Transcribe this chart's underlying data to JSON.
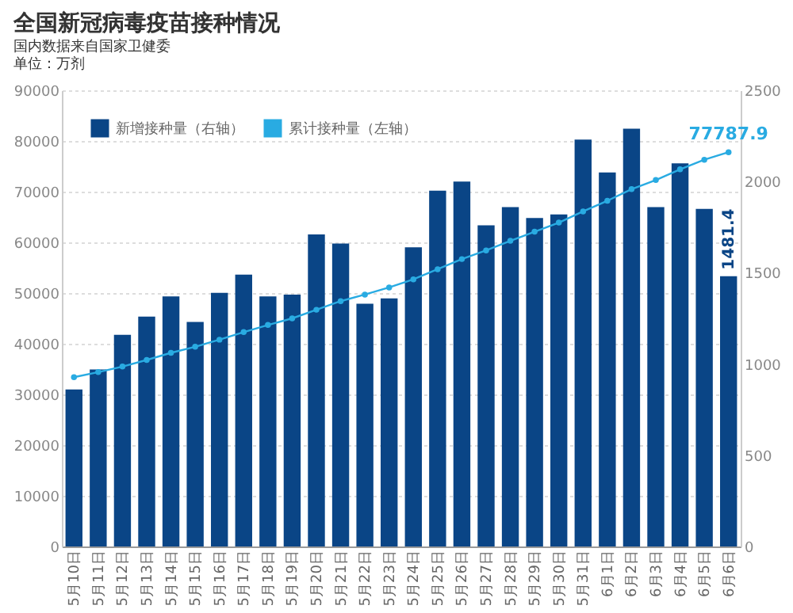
{
  "chart_data": {
    "type": "bar",
    "title": "全国新冠病毒疫苗接种情况",
    "subtitle": "国内数据来自国家卫健委",
    "annotations": [
      "单位：万剂"
    ],
    "categories": [
      "5月10日",
      "5月11日",
      "5月12日",
      "5月13日",
      "5月14日",
      "5月15日",
      "5月16日",
      "5月17日",
      "5月18日",
      "5月19日",
      "5月20日",
      "5月21日",
      "5月22日",
      "5月23日",
      "5月24日",
      "5月25日",
      "5月26日",
      "5月27日",
      "5月28日",
      "5月29日",
      "5月30日",
      "5月31日",
      "6月1日",
      "6月2日",
      "6月3日",
      "6月4日",
      "6月5日",
      "6月6日"
    ],
    "series": [
      {
        "name": "新增接种量（右轴）",
        "axis": "y2",
        "color": "#0a4586",
        "values": [
          860,
          970,
          1160,
          1260,
          1370,
          1230,
          1390,
          1490,
          1370,
          1380,
          1710,
          1660,
          1330,
          1360,
          1640,
          1950,
          2000,
          1760,
          1860,
          1800,
          1820,
          2230,
          2050,
          2290,
          1860,
          2100,
          1850,
          1481.4
        ],
        "value_labels": [
          null,
          null,
          null,
          null,
          null,
          null,
          null,
          null,
          null,
          null,
          null,
          null,
          null,
          null,
          null,
          null,
          null,
          null,
          null,
          null,
          null,
          null,
          null,
          null,
          null,
          null,
          null,
          "1481.4"
        ]
      },
      {
        "name": "累计接种量（左轴）",
        "type": "line",
        "axis": "y",
        "color": "#29abe2",
        "marker": "circle",
        "values": [
          33400,
          34400,
          35500,
          36800,
          38200,
          39400,
          40800,
          42300,
          43700,
          45000,
          46700,
          48400,
          49700,
          51100,
          52700,
          54700,
          56700,
          58400,
          60300,
          62100,
          63900,
          66100,
          68200,
          70500,
          72300,
          74400,
          76300,
          77787.9
        ],
        "value_labels": [
          null,
          null,
          null,
          null,
          null,
          null,
          null,
          null,
          null,
          null,
          null,
          null,
          null,
          null,
          null,
          null,
          null,
          null,
          null,
          null,
          null,
          null,
          null,
          null,
          null,
          null,
          null,
          "77787.9"
        ]
      }
    ],
    "ylim": [
      0,
      90000
    ],
    "yticks": [
      0,
      10000,
      20000,
      30000,
      40000,
      50000,
      60000,
      70000,
      80000,
      90000
    ],
    "y2lim": [
      0,
      2500
    ],
    "y2ticks": [
      0,
      500,
      1000,
      1500,
      2000,
      2500
    ],
    "grid": "y",
    "legend": "top left"
  }
}
